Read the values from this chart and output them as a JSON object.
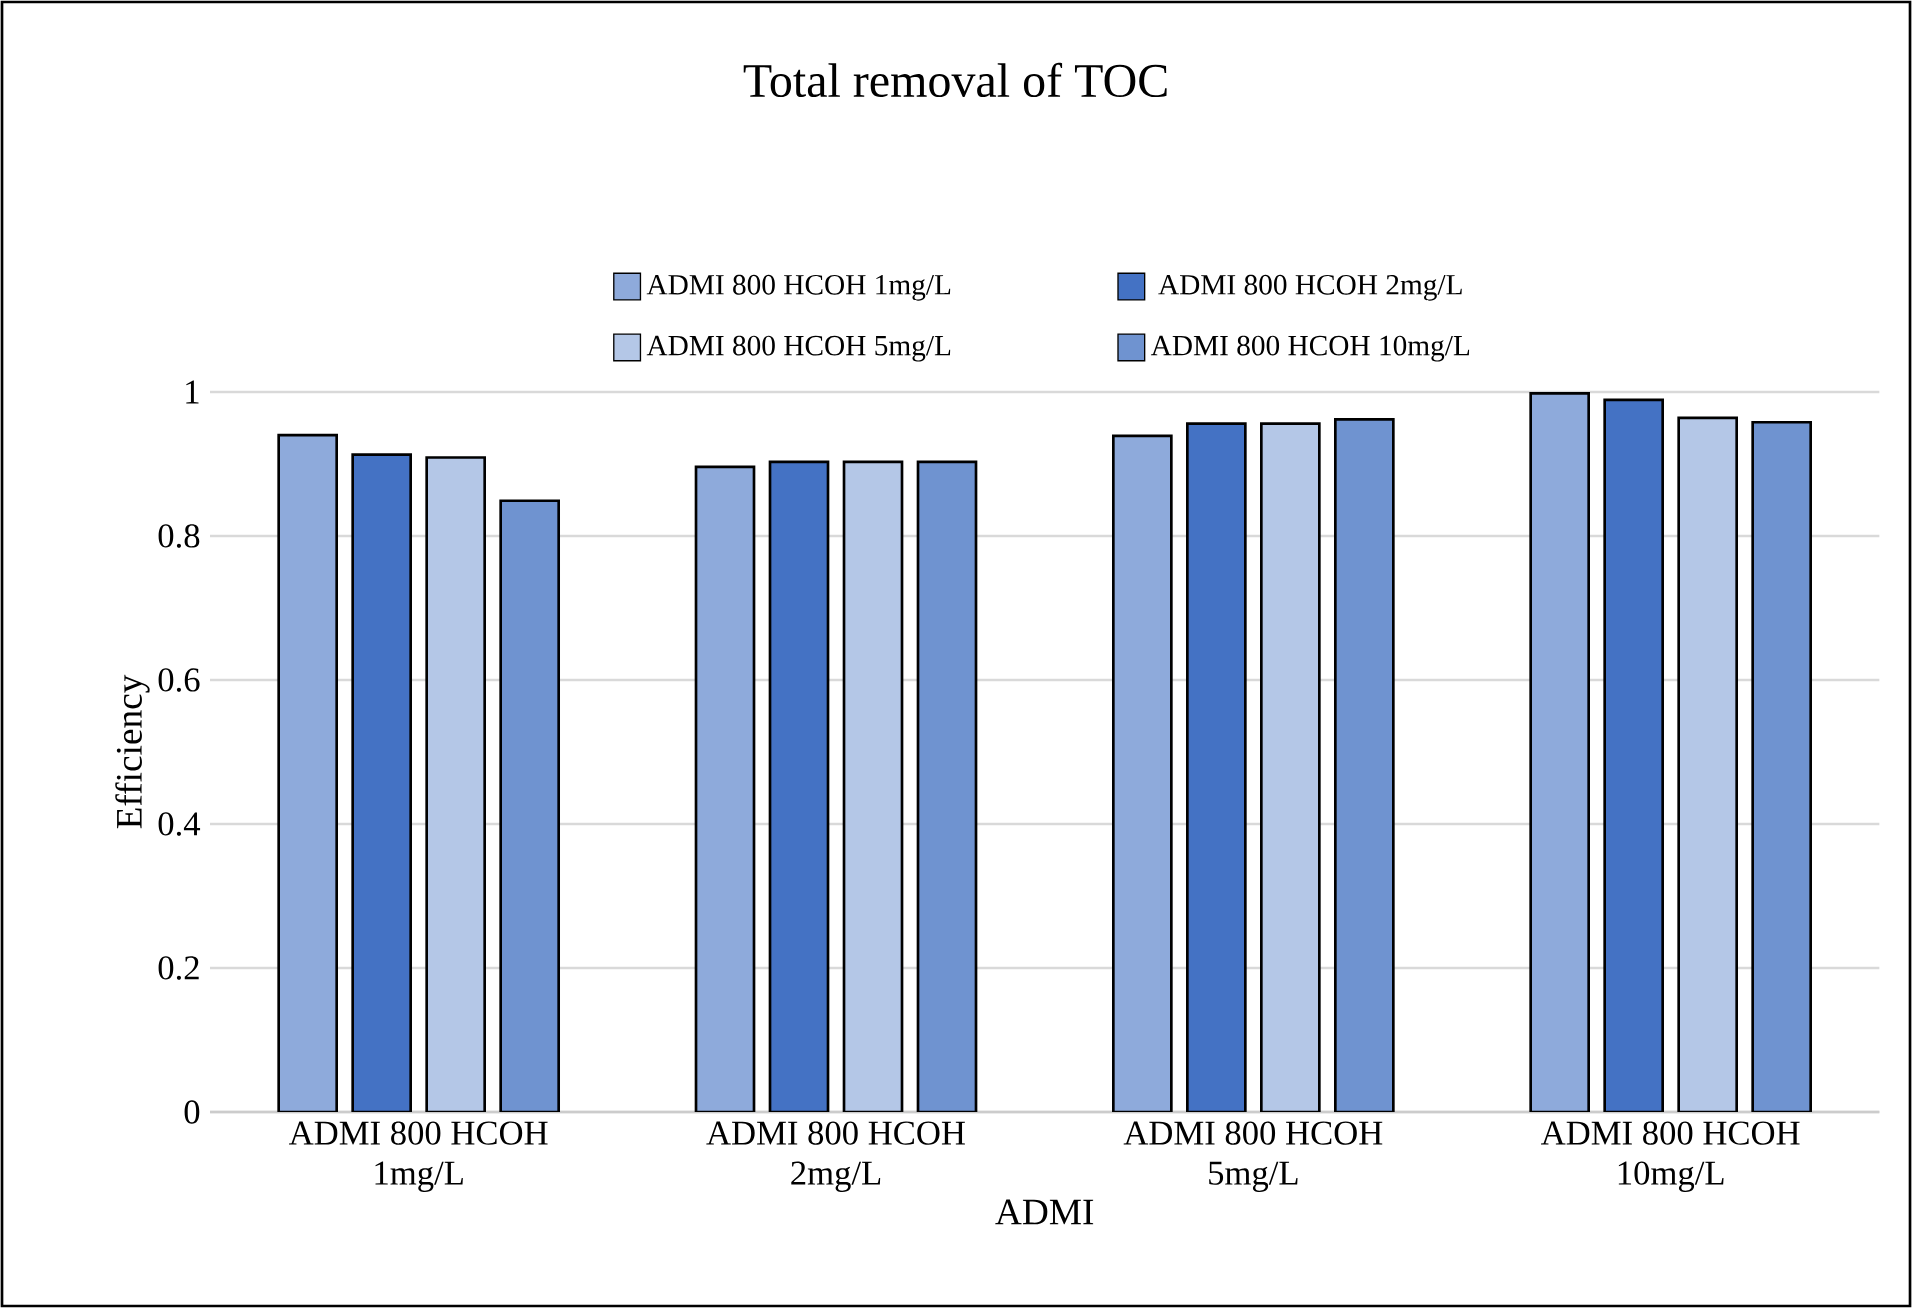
{
  "chart_data": {
    "type": "bar",
    "title": "Total removal of TOC",
    "xlabel": "ADMI",
    "ylabel": "Efficiency",
    "categories": [
      "ADMI 800 HCOH\n1mg/L",
      "ADMI 800 HCOH\n2mg/L",
      "ADMI 800 HCOH\n5mg/L",
      "ADMI 800 HCOH\n10mg/L"
    ],
    "series": [
      {
        "name": "ADMI 800 HCOH 1mg/L",
        "color": "#8eaadb",
        "values": [
          0.94,
          0.896,
          0.939,
          0.998
        ]
      },
      {
        "name": "ADMI 800 HCOH 2mg/L",
        "color": "#4472c4",
        "values": [
          0.913,
          0.903,
          0.956,
          0.989
        ]
      },
      {
        "name": "ADMI 800 HCOH 5mg/L",
        "color": "#b4c7e7",
        "values": [
          0.909,
          0.903,
          0.956,
          0.964
        ]
      },
      {
        "name": "ADMI 800 HCOH 10mg/L",
        "color": "#6f93d0",
        "values": [
          0.849,
          0.903,
          0.962,
          0.958
        ]
      }
    ],
    "ylim": [
      0,
      1
    ],
    "yticks": [
      0,
      0.2,
      0.4,
      0.6,
      0.8,
      1
    ],
    "grid": "y",
    "legend": "top"
  }
}
